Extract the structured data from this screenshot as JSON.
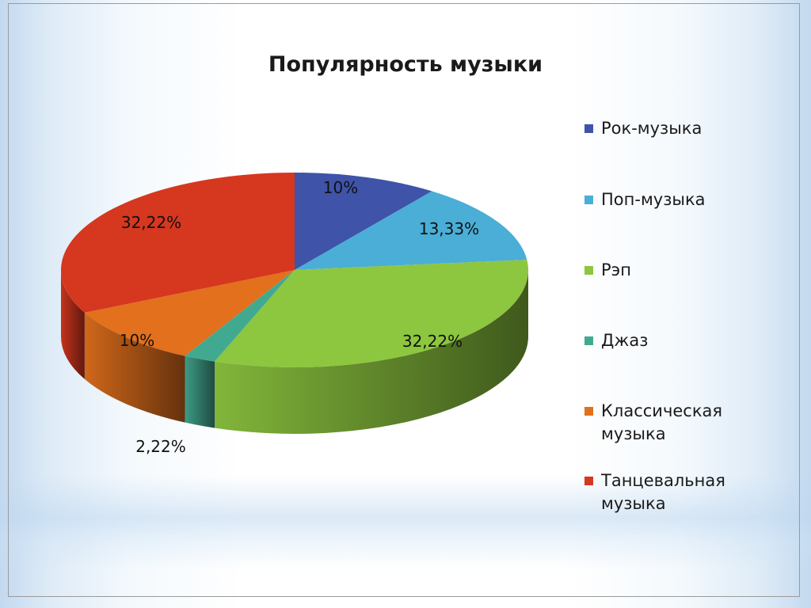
{
  "chart_data": {
    "type": "pie",
    "title": "Популярность музыки",
    "legend_position": "right",
    "slices": [
      {
        "label": "Рок-музыка",
        "value": 10,
        "display": "10%",
        "color": "#3f53a8"
      },
      {
        "label": "Поп-музыка",
        "value": 13.33,
        "display": "13,33%",
        "color": "#4aaed6"
      },
      {
        "label": "Рэп",
        "value": 32.22,
        "display": "32,22%",
        "color": "#8dc63f"
      },
      {
        "label": "Джаз",
        "value": 2.22,
        "display": "2,22%",
        "color": "#42a991"
      },
      {
        "label": "Классическая музыка",
        "value": 10,
        "display": "10%",
        "color": "#e2701c"
      },
      {
        "label": "Танцевальная музыка",
        "value": 32.22,
        "display": "32,22%",
        "color": "#d6371f"
      }
    ]
  }
}
